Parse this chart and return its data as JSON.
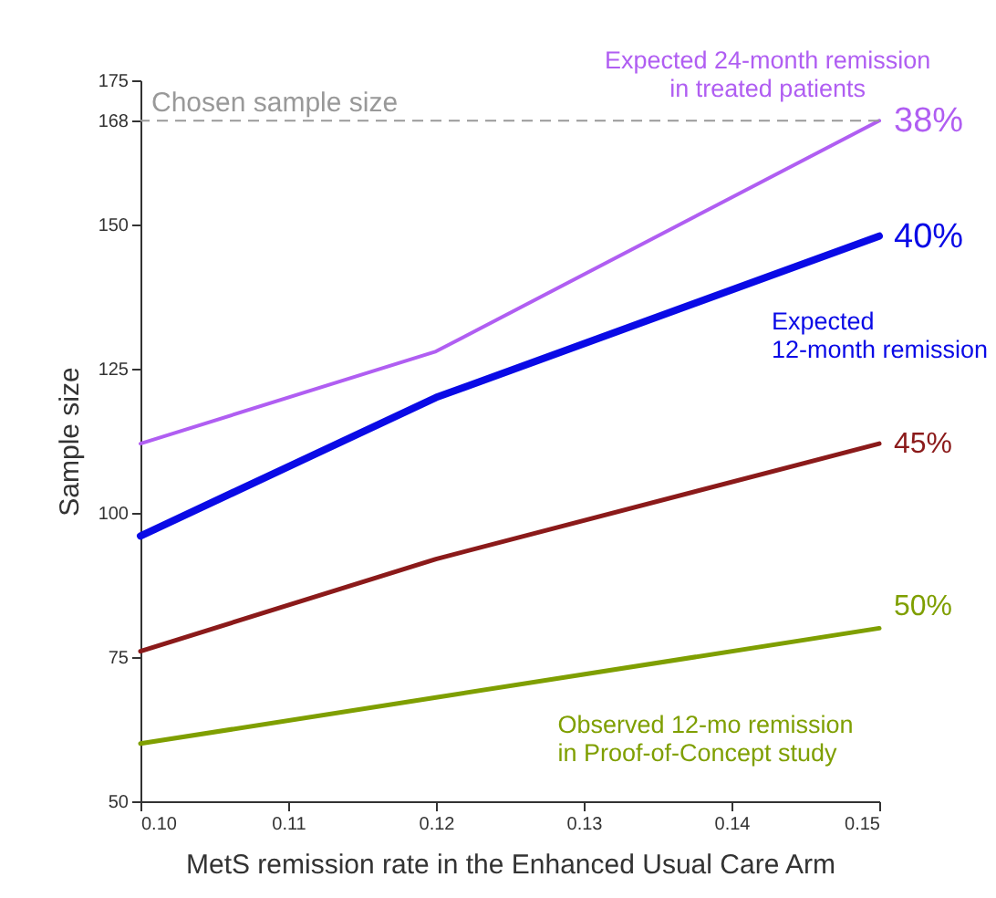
{
  "chart_data": {
    "type": "line",
    "xlabel": "MetS remission rate in the Enhanced Usual Care Arm",
    "ylabel": "Sample size",
    "x": [
      0.1,
      0.12,
      0.15
    ],
    "series": [
      {
        "name": "38%",
        "color": "#b05ef2",
        "values": [
          112,
          128,
          168
        ]
      },
      {
        "name": "40%",
        "color": "#0a0ae6",
        "values": [
          96,
          120,
          148
        ]
      },
      {
        "name": "45%",
        "color": "#8b1a1a",
        "values": [
          76,
          92,
          112
        ]
      },
      {
        "name": "50%",
        "color": "#7f9f00",
        "values": [
          60,
          68,
          80
        ]
      }
    ],
    "xlim": [
      0.1,
      0.15
    ],
    "xticks": [
      {
        "value": 0.1,
        "label": "0.10"
      },
      {
        "value": 0.11,
        "label": "0.11"
      },
      {
        "value": 0.12,
        "label": "0.12"
      },
      {
        "value": 0.13,
        "label": "0.13"
      },
      {
        "value": 0.14,
        "label": "0.14"
      },
      {
        "value": 0.15,
        "label": "0.15"
      }
    ],
    "ylim": [
      50,
      175
    ],
    "yticks": [
      50,
      75,
      100,
      125,
      150,
      168,
      175
    ],
    "ref_lines": [
      {
        "axis": "y",
        "value": 168,
        "label": "Chosen sample size",
        "color": "#999999",
        "line_style": "dashed"
      }
    ],
    "annotations": [
      {
        "text": "Expected 24-month remission\nin treated patients",
        "x": 0.148,
        "y": 165
      },
      {
        "text": "Expected\n12-month remission",
        "x": 0.14,
        "y": 140
      },
      {
        "text": "Observed 12-mo remission\nin Proof-of-Concept study",
        "x": 0.127,
        "y": 71
      }
    ],
    "grid": false,
    "marker": "none",
    "line_style": "solid"
  }
}
